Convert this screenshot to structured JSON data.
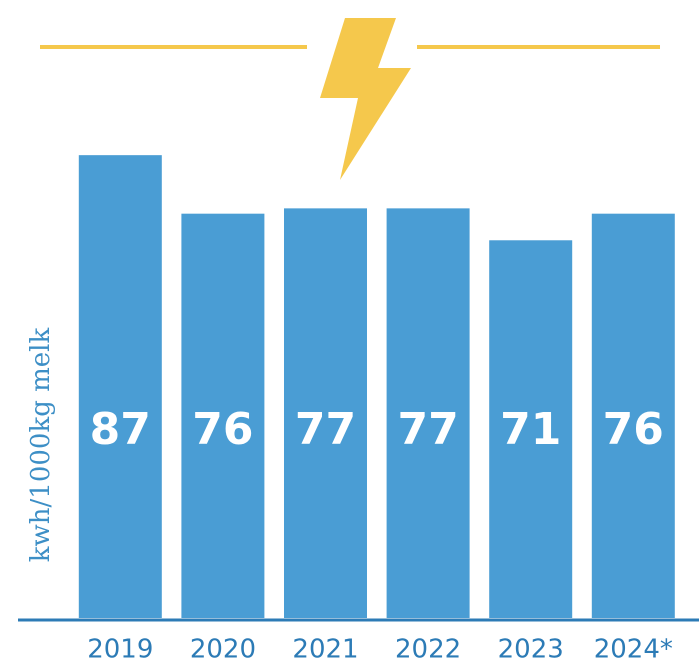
{
  "chart_data": {
    "type": "bar",
    "y_label": "kwh/1000kg melk",
    "categories": [
      "2019",
      "2020",
      "2021",
      "2022",
      "2023",
      "2024*"
    ],
    "values": [
      87,
      76,
      77,
      77,
      71,
      76
    ],
    "color": "#4a9dd4",
    "ylim": [
      0,
      100
    ]
  }
}
